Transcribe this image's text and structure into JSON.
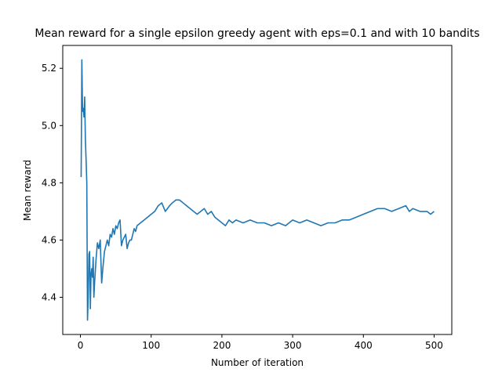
{
  "chart_data": {
    "type": "line",
    "title": "Mean reward for a single epsilon greedy agent with eps=0.1 and with 10 bandits",
    "xlabel": "Number of iteration",
    "ylabel": "Mean reward",
    "xlim": [
      -25,
      525
    ],
    "ylim": [
      4.27,
      5.28
    ],
    "xticks": [
      0,
      100,
      200,
      300,
      400,
      500
    ],
    "xtick_labels": [
      "0",
      "100",
      "200",
      "300",
      "400",
      "500"
    ],
    "yticks": [
      4.4,
      4.6,
      4.8,
      5.0,
      5.2
    ],
    "ytick_labels": [
      "4.4",
      "4.6",
      "4.8",
      "5.0",
      "5.2"
    ],
    "grid": false,
    "legend": "none",
    "series": [
      {
        "color": "#1f77b4",
        "x": [
          1,
          2,
          3,
          4,
          5,
          6,
          7,
          8,
          9,
          10,
          11,
          12,
          13,
          14,
          15,
          16,
          17,
          18,
          19,
          20,
          22,
          24,
          26,
          28,
          30,
          32,
          34,
          36,
          38,
          40,
          42,
          44,
          46,
          48,
          50,
          52,
          54,
          56,
          58,
          60,
          62,
          64,
          66,
          68,
          70,
          72,
          74,
          76,
          78,
          80,
          85,
          90,
          95,
          100,
          105,
          110,
          115,
          120,
          123,
          126,
          130,
          135,
          140,
          145,
          150,
          155,
          160,
          165,
          170,
          175,
          180,
          185,
          190,
          195,
          200,
          205,
          210,
          215,
          220,
          230,
          240,
          250,
          260,
          270,
          280,
          290,
          300,
          310,
          320,
          330,
          340,
          350,
          360,
          370,
          380,
          390,
          400,
          410,
          420,
          430,
          440,
          450,
          460,
          465,
          470,
          480,
          490,
          495,
          500
        ],
        "y": [
          4.82,
          5.23,
          5.05,
          5.06,
          5.03,
          5.1,
          4.95,
          4.88,
          4.8,
          4.32,
          4.4,
          4.55,
          4.56,
          4.36,
          4.48,
          4.5,
          4.47,
          4.54,
          4.4,
          4.45,
          4.53,
          4.59,
          4.57,
          4.6,
          4.45,
          4.51,
          4.56,
          4.58,
          4.6,
          4.58,
          4.62,
          4.61,
          4.64,
          4.62,
          4.65,
          4.64,
          4.66,
          4.67,
          4.58,
          4.6,
          4.61,
          4.62,
          4.57,
          4.59,
          4.6,
          4.6,
          4.62,
          4.64,
          4.63,
          4.65,
          4.66,
          4.67,
          4.68,
          4.69,
          4.7,
          4.72,
          4.73,
          4.7,
          4.71,
          4.72,
          4.73,
          4.74,
          4.74,
          4.73,
          4.72,
          4.71,
          4.7,
          4.69,
          4.7,
          4.71,
          4.69,
          4.7,
          4.68,
          4.67,
          4.66,
          4.65,
          4.67,
          4.66,
          4.67,
          4.66,
          4.67,
          4.66,
          4.66,
          4.65,
          4.66,
          4.65,
          4.67,
          4.66,
          4.67,
          4.66,
          4.65,
          4.66,
          4.66,
          4.67,
          4.67,
          4.68,
          4.69,
          4.7,
          4.71,
          4.71,
          4.7,
          4.71,
          4.72,
          4.7,
          4.71,
          4.7,
          4.7,
          4.69,
          4.7
        ]
      }
    ]
  }
}
